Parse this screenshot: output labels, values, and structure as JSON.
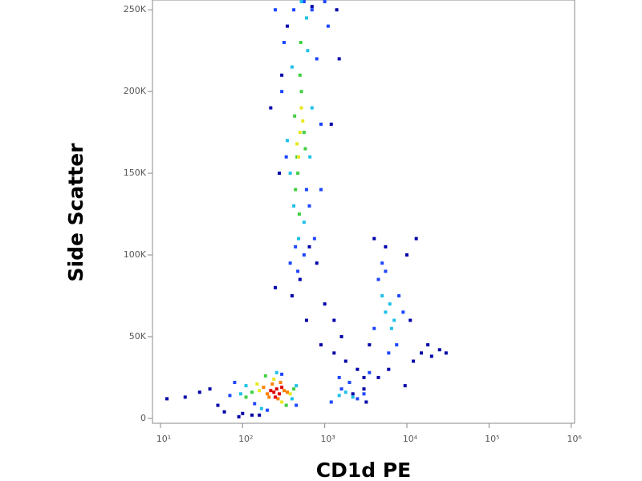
{
  "chart_data": {
    "type": "scatter",
    "log_x": true,
    "x_label": "CD1d PE",
    "y_label": "Side Scatter",
    "xlim": [
      8,
      1100000
    ],
    "xticks": [
      {
        "value": 10,
        "label": "10¹"
      },
      {
        "value": 100,
        "label": "10²"
      },
      {
        "value": 1000,
        "label": "10³"
      },
      {
        "value": 10000,
        "label": "10⁴"
      },
      {
        "value": 100000,
        "label": "10⁵"
      },
      {
        "value": 1000000,
        "label": "10⁶"
      }
    ],
    "ylim": [
      -3000,
      256000
    ],
    "yticks": [
      0,
      {
        "value": 50000,
        "label": "50K"
      },
      {
        "value": 100000,
        "label": "100K"
      },
      {
        "value": 150000,
        "label": "150K"
      },
      {
        "value": 200000,
        "label": "200K"
      },
      {
        "value": 250000,
        "label": "250K"
      }
    ],
    "series": [
      {
        "color": "#0000a8",
        "x": [
          30,
          40,
          20,
          12,
          50,
          60,
          100,
          130,
          600,
          900,
          1300,
          1800,
          2500,
          1000,
          3000,
          1400,
          12000,
          15000,
          20000,
          25000,
          30000,
          10000,
          11000,
          9500,
          13000,
          4000,
          3000,
          3500,
          800,
          500,
          650,
          1500,
          2200,
          3200,
          700,
          250,
          280,
          350,
          1200,
          1300,
          1600,
          400,
          300,
          220,
          4500,
          6000,
          5500,
          18000,
          160,
          90
        ],
        "values": [
          16000,
          18000,
          13000,
          12000,
          8000,
          4000,
          3000,
          2000,
          60000,
          45000,
          40000,
          35000,
          30000,
          70000,
          25000,
          250000,
          35000,
          40000,
          38000,
          42000,
          40000,
          100000,
          60000,
          20000,
          110000,
          110000,
          18000,
          45000,
          95000,
          85000,
          105000,
          220000,
          15000,
          10000,
          252000,
          80000,
          150000,
          240000,
          180000,
          60000,
          50000,
          75000,
          210000,
          190000,
          25000,
          30000,
          105000,
          45000,
          2000,
          1000
        ]
      },
      {
        "color": "#1e46ff",
        "x": [
          70,
          80,
          140,
          200,
          300,
          450,
          1200,
          1600,
          2500,
          3000,
          2000,
          4500,
          5500,
          7500,
          8000,
          6000,
          4000,
          9000,
          5000,
          340,
          300,
          800,
          900,
          320,
          700,
          750,
          560,
          440,
          420,
          900,
          1000,
          1100,
          1500,
          3500,
          380,
          470,
          600,
          250,
          650,
          560
        ],
        "values": [
          14000,
          22000,
          9000,
          5000,
          27000,
          8000,
          10000,
          18000,
          12000,
          15000,
          22000,
          85000,
          90000,
          45000,
          75000,
          40000,
          55000,
          65000,
          95000,
          160000,
          200000,
          220000,
          180000,
          230000,
          250000,
          110000,
          100000,
          105000,
          250000,
          140000,
          255000,
          240000,
          25000,
          28000,
          95000,
          90000,
          140000,
          250000,
          130000,
          255000
        ]
      },
      {
        "color": "#20c0e8",
        "x": [
          95,
          110,
          450,
          400,
          170,
          260,
          1500,
          1800,
          2200,
          5500,
          6200,
          7000,
          400,
          620,
          700,
          420,
          380,
          560,
          600,
          520,
          480,
          660,
          350,
          5000,
          6500
        ],
        "values": [
          15000,
          20000,
          20000,
          12000,
          6000,
          28000,
          14000,
          16000,
          13000,
          65000,
          70000,
          60000,
          215000,
          225000,
          190000,
          130000,
          150000,
          120000,
          245000,
          255000,
          110000,
          160000,
          170000,
          75000,
          55000
        ]
      },
      {
        "color": "#40d040",
        "x": [
          130,
          420,
          190,
          340,
          110,
          470,
          520,
          440,
          560,
          500,
          490,
          430,
          580,
          510,
          460
        ],
        "values": [
          16000,
          18000,
          26000,
          8000,
          13000,
          150000,
          200000,
          140000,
          175000,
          210000,
          125000,
          185000,
          165000,
          230000,
          160000
        ]
      },
      {
        "color": "#e8e820",
        "x": [
          160,
          380,
          240,
          300,
          150,
          500,
          480,
          520,
          460,
          540
        ],
        "values": [
          17000,
          15000,
          24000,
          10000,
          21000,
          175000,
          160000,
          190000,
          168000,
          182000
        ]
      },
      {
        "color": "#ff8000",
        "x": [
          200,
          320,
          230,
          270,
          350,
          180,
          290,
          210
        ],
        "values": [
          15000,
          17000,
          21000,
          12000,
          16000,
          19000,
          22000,
          13000
        ]
      },
      {
        "color": "#e00000",
        "x": [
          240,
          260,
          280,
          220,
          250,
          300
        ],
        "values": [
          16000,
          18000,
          15000,
          17000,
          13000,
          19000
        ]
      }
    ]
  }
}
